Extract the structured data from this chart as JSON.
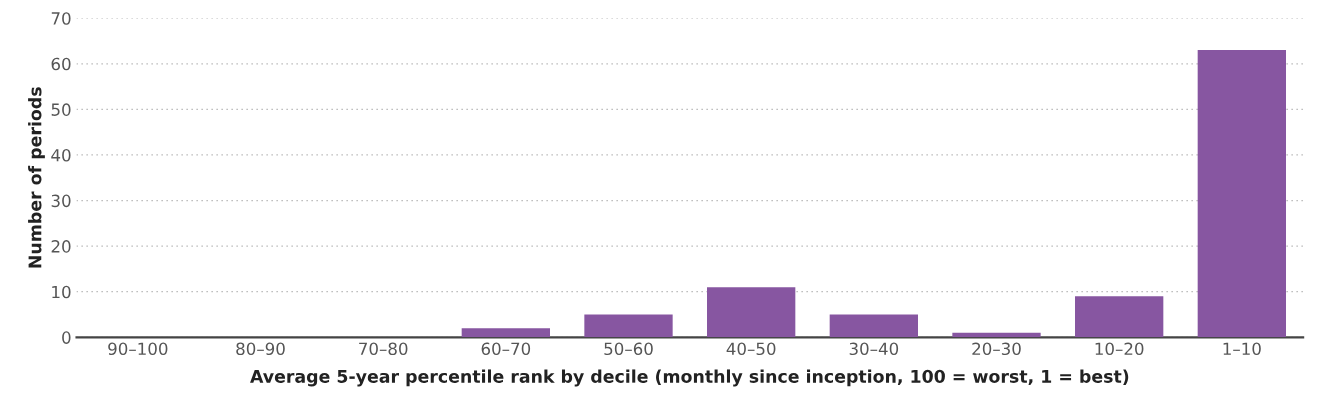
{
  "chart_data": {
    "type": "bar",
    "xlabel": "Average 5-year percentile rank by decile (monthly since inception, 100 = worst, 1 = best)",
    "ylabel": "Number of periods",
    "categories": [
      "90–100",
      "80–90",
      "70–80",
      "60–70",
      "50–60",
      "40–50",
      "30–40",
      "20–30",
      "10–20",
      "1–10"
    ],
    "values": [
      0,
      0,
      0,
      2,
      5,
      11,
      5,
      1,
      9,
      63
    ],
    "color": "#8756a1",
    "ylim": [
      0,
      70
    ],
    "yticks": [
      0,
      10,
      20,
      30,
      40,
      50,
      60,
      70
    ],
    "grid": "y",
    "legend": false
  }
}
